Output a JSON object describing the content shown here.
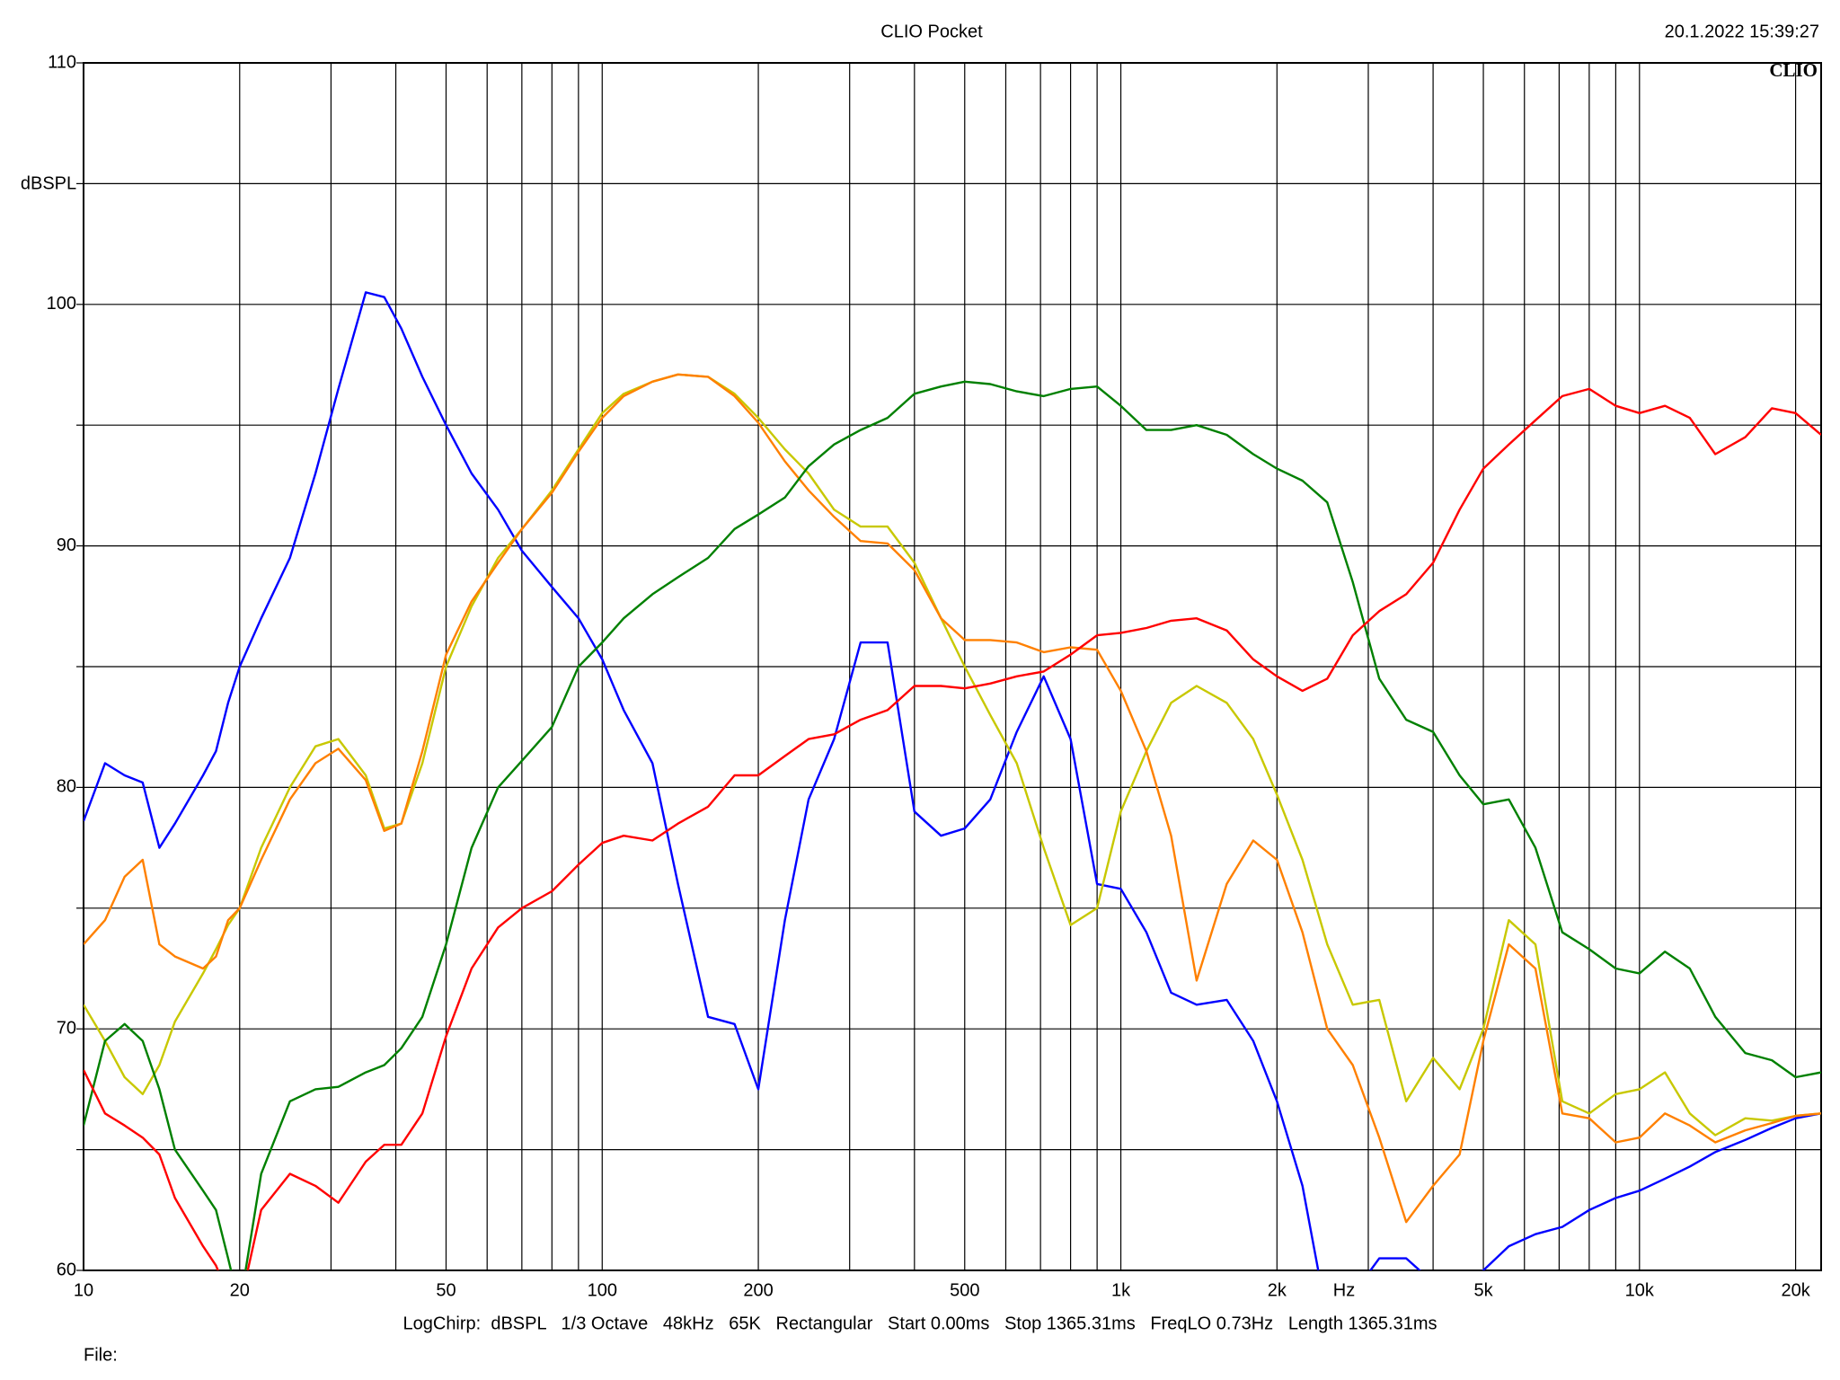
{
  "chart_data": {
    "type": "line",
    "title": "CLIO Pocket",
    "timestamp": "20.1.2022 15:39:27",
    "logo": "CLIO",
    "y_label": "dBSPL",
    "x_label": "Hz",
    "footer": "LogChirp:  dBSPL   1/3 Octave   48kHz   65K   Rectangular   Start 0.00ms   Stop 1365.31ms   FreqLO 0.73Hz   Length 1365.31ms",
    "file_label": "File:",
    "xscale": "log",
    "grid": true,
    "xlim": [
      10,
      22400
    ],
    "ylim": [
      60,
      110
    ],
    "xticks": [
      10,
      20,
      50,
      100,
      200,
      500,
      {
        "value": 1000,
        "label": "1k"
      },
      {
        "value": 2000,
        "label": "2k"
      },
      {
        "value": 5000,
        "label": "5k"
      },
      {
        "value": 10000,
        "label": "10k"
      },
      {
        "value": 20000,
        "label": "20k"
      }
    ],
    "xminor": [
      30,
      40,
      60,
      70,
      80,
      90,
      300,
      400,
      600,
      700,
      800,
      900,
      3000,
      4000,
      6000,
      7000,
      8000,
      9000
    ],
    "yticks": [
      60,
      70,
      80,
      90,
      100,
      110
    ],
    "yminor": [
      65,
      75,
      85,
      95,
      105
    ],
    "x": [
      10,
      11,
      12,
      13,
      14,
      15,
      17,
      18,
      19,
      20,
      22,
      25,
      28,
      31,
      35,
      38,
      41,
      45,
      50,
      56,
      63,
      70,
      80,
      90,
      100,
      110,
      125,
      140,
      160,
      180,
      200,
      225,
      250,
      280,
      315,
      355,
      400,
      450,
      500,
      560,
      630,
      710,
      800,
      900,
      1000,
      1120,
      1250,
      1400,
      1600,
      1800,
      2000,
      2240,
      2500,
      2800,
      3150,
      3550,
      4000,
      4500,
      5000,
      5600,
      6300,
      7100,
      8000,
      9000,
      10000,
      11200,
      12500,
      14000,
      16000,
      18000,
      20000,
      22400
    ],
    "series": [
      {
        "color": "#0000ff",
        "values": [
          78.6,
          81,
          80.5,
          80.2,
          77.5,
          78.5,
          80.5,
          81.5,
          83.5,
          85,
          87,
          89.5,
          93,
          96.5,
          100.5,
          100.3,
          99,
          97,
          95,
          93,
          91.5,
          89.8,
          88.3,
          87,
          85.3,
          83.2,
          81,
          76,
          70.5,
          70.2,
          67.5,
          74.5,
          79.5,
          82,
          86,
          86,
          79,
          78,
          78.3,
          79.5,
          82.3,
          84.6,
          82,
          76,
          75.8,
          74,
          71.5,
          71,
          71.2,
          69.5,
          67,
          63.5,
          58,
          59,
          60.5,
          60.5,
          59.5,
          59,
          60,
          61,
          61.5,
          61.8,
          62.5,
          63,
          63.3,
          63.8,
          64.3,
          64.9,
          65.4,
          65.9,
          66.3,
          66.5
        ]
      },
      {
        "color": "#c8c800",
        "values": [
          71,
          69.5,
          68,
          67.3,
          68.5,
          70.3,
          72.3,
          73.3,
          74.3,
          75,
          77.5,
          80,
          81.7,
          82,
          80.5,
          78.3,
          78.5,
          81,
          85,
          87.5,
          89.5,
          90.7,
          92.3,
          94,
          95.5,
          96.3,
          96.8,
          97.1,
          97,
          96.3,
          95.3,
          94,
          93,
          91.5,
          90.8,
          90.8,
          89.3,
          87,
          85,
          83,
          81,
          77.5,
          74.3,
          75,
          79,
          81.5,
          83.5,
          84.2,
          83.5,
          82,
          79.7,
          77,
          73.5,
          71,
          71.2,
          67,
          68.8,
          67.5,
          70,
          74.5,
          73.5,
          67,
          66.5,
          67.3,
          67.5,
          68.2,
          66.5,
          65.6,
          66.3,
          66.2,
          66.4,
          66.5
        ]
      },
      {
        "color": "#ff8000",
        "values": [
          73.5,
          74.5,
          76.3,
          77,
          73.5,
          73,
          72.5,
          73,
          74.5,
          75,
          77,
          79.5,
          81,
          81.6,
          80.3,
          78.2,
          78.5,
          81.5,
          85.5,
          87.7,
          89.3,
          90.7,
          92.2,
          93.9,
          95.3,
          96.2,
          96.8,
          97.1,
          97,
          96.2,
          95.1,
          93.5,
          92.3,
          91.2,
          90.2,
          90.1,
          89,
          87,
          86.1,
          86.1,
          86,
          85.6,
          85.8,
          85.7,
          84,
          81.5,
          78,
          72,
          76,
          77.8,
          77,
          74,
          70,
          68.5,
          65.5,
          62,
          63.5,
          64.8,
          69.5,
          73.5,
          72.5,
          66.5,
          66.3,
          65.3,
          65.5,
          66.5,
          66,
          65.3,
          65.8,
          66.1,
          66.4,
          66.5
        ]
      },
      {
        "color": "#008000",
        "values": [
          66,
          69.5,
          70.2,
          69.5,
          67.5,
          65,
          63.3,
          62.5,
          60.5,
          58.5,
          64,
          67,
          67.5,
          67.6,
          68.2,
          68.5,
          69.2,
          70.5,
          73.5,
          77.5,
          80,
          81.1,
          82.5,
          85,
          86,
          87,
          88,
          88.7,
          89.5,
          90.7,
          91.3,
          92,
          93.3,
          94.2,
          94.8,
          95.3,
          96.3,
          96.6,
          96.8,
          96.7,
          96.4,
          96.2,
          96.5,
          96.6,
          95.8,
          94.8,
          94.8,
          95,
          94.6,
          93.8,
          93.2,
          92.7,
          91.8,
          88.5,
          84.5,
          82.8,
          82.3,
          80.5,
          79.3,
          79.5,
          77.5,
          74,
          73.3,
          72.5,
          72.3,
          73.2,
          72.5,
          70.5,
          69,
          68.7,
          68,
          68.2
        ]
      },
      {
        "color": "#ff0000",
        "values": [
          68.3,
          66.5,
          66,
          65.5,
          64.8,
          63,
          61,
          60.2,
          59,
          58.5,
          62.5,
          64,
          63.5,
          62.8,
          64.5,
          65.2,
          65.2,
          66.5,
          69.7,
          72.5,
          74.2,
          75,
          75.7,
          76.8,
          77.7,
          78,
          77.8,
          78.5,
          79.2,
          80.5,
          80.5,
          81.3,
          82,
          82.2,
          82.8,
          83.2,
          84.2,
          84.2,
          84.1,
          84.3,
          84.6,
          84.8,
          85.5,
          86.3,
          86.4,
          86.6,
          86.9,
          87,
          86.5,
          85.3,
          84.6,
          84,
          84.5,
          86.3,
          87.3,
          88,
          89.3,
          91.5,
          93.2,
          94.2,
          95.2,
          96.2,
          96.5,
          95.8,
          95.5,
          95.8,
          95.3,
          93.8,
          94.5,
          95.7,
          95.5,
          94.6
        ]
      }
    ]
  }
}
